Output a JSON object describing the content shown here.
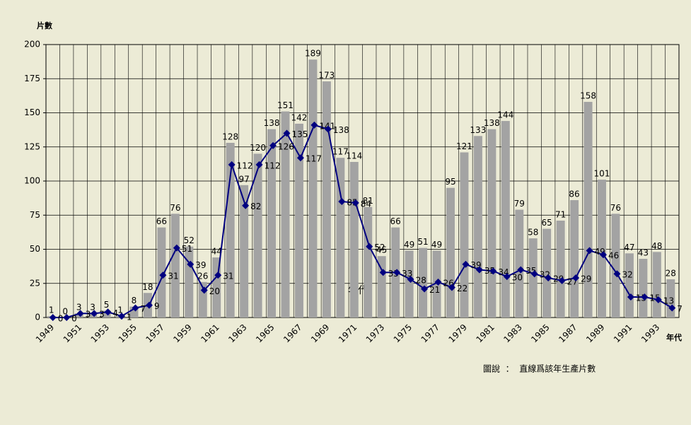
{
  "chart_data": {
    "type": "bar_line",
    "y_axis_label": "片數",
    "x_axis_label": "年代",
    "annotation": "年代",
    "caption": "圖說  ：  直線爲該年生產片數",
    "categories": [
      "1949",
      null,
      "1951",
      null,
      "1953",
      null,
      "1955",
      null,
      "1957",
      null,
      "1959",
      null,
      "1961",
      null,
      "1963",
      null,
      "1965",
      null,
      "1967",
      null,
      "1969",
      null,
      "1971",
      null,
      "1973",
      null,
      "1975",
      null,
      "1977",
      null,
      "1979",
      null,
      "1981",
      null,
      "1983",
      null,
      "1985",
      null,
      "1987",
      null,
      "1989",
      null,
      "1991",
      null,
      "1993",
      null
    ],
    "series": [
      {
        "type": "bar",
        "color": "#a3a3a3",
        "values": [
          1,
          0,
          3,
          3,
          5,
          1,
          8,
          18,
          66,
          76,
          52,
          26,
          44,
          128,
          97,
          120,
          138,
          151,
          142,
          189,
          173,
          117,
          114,
          81,
          45,
          66,
          49,
          51,
          49,
          95,
          121,
          133,
          138,
          144,
          79,
          58,
          65,
          71,
          86,
          158,
          101,
          76,
          47,
          43,
          48,
          28
        ]
      },
      {
        "type": "line",
        "color": "#000080",
        "values": [
          0,
          0,
          3,
          3,
          4,
          1,
          7,
          9,
          31,
          51,
          39,
          20,
          31,
          112,
          82,
          112,
          126,
          135,
          117,
          141,
          138,
          85,
          84,
          52,
          33,
          33,
          28,
          21,
          26,
          22,
          39,
          35,
          34,
          30,
          35,
          32,
          29,
          27,
          29,
          49,
          46,
          32,
          15,
          15,
          13,
          7
        ]
      }
    ],
    "ylim": [
      0,
      200
    ],
    "yticks": [
      0,
      25,
      50,
      75,
      100,
      125,
      150,
      175,
      200
    ],
    "grid": true
  }
}
